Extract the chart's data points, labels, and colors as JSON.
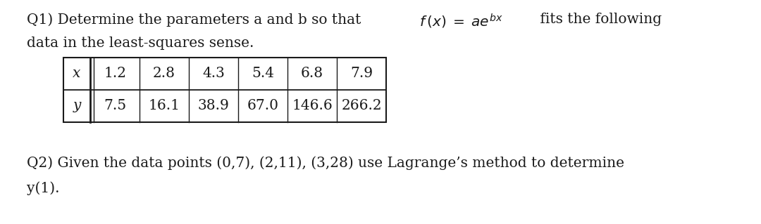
{
  "background_color": "#ffffff",
  "q1_prefix": "Q1) Determine the parameters a and b so that ",
  "q1_suffix": " fits the following",
  "q1_line2": "data in the least-squares sense.",
  "table_x_label": "x",
  "table_y_label": "y",
  "table_x_values": [
    "1.2",
    "2.8",
    "4.3",
    "5.4",
    "6.8",
    "7.9"
  ],
  "table_y_values": [
    "7.5",
    "16.1",
    "38.9",
    "67.0",
    "146.6",
    "266.2"
  ],
  "q2_line1": "Q2) Given the data points (0,7), (2,11), (3,28) use Lagrange’s method to determine",
  "q2_line2": "y(1).",
  "font_size": 14.5,
  "text_color": "#1a1a1a",
  "figsize": [
    10.8,
    3.19
  ],
  "dpi": 100
}
